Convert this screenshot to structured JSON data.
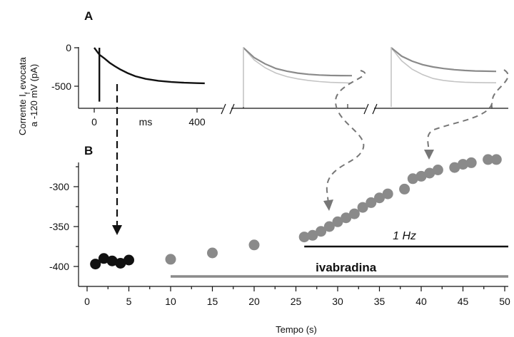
{
  "colors": {
    "black": "#111111",
    "gray": "#8a8a8a",
    "light_gray": "#c4c4c4"
  },
  "chart_data": [
    {
      "panel": "A",
      "type": "line",
      "ylabel_line1": "Corrente I",
      "ylabel_sub": "f",
      "ylabel_line1_end": " evocata",
      "ylabel_line2": "a -120 mV (pA)",
      "xlabel": "ms",
      "x_ticks": [
        "0",
        "400"
      ],
      "y_ticks": [
        "0",
        "-500"
      ],
      "ylim": [
        -720,
        60
      ],
      "xlim": [
        -20,
        450
      ],
      "series": [
        {
          "color": "#111111",
          "x": [
            0,
            20,
            40,
            60,
            80,
            100,
            130,
            160,
            200,
            250,
            300,
            350,
            400,
            430
          ],
          "y": [
            0,
            -90,
            -140,
            -195,
            -240,
            -280,
            -330,
            -370,
            -405,
            -430,
            -445,
            -455,
            -460,
            -462
          ]
        }
      ],
      "insets": [
        {
          "traces": [
            {
              "color": "#c4c4c4",
              "y": [
                0,
                -160,
                -260,
                -330,
                -375,
                -405,
                -425,
                -440,
                -450,
                -455,
                -458
              ]
            },
            {
              "color": "#8a8a8a",
              "y": [
                0,
                -130,
                -210,
                -270,
                -305,
                -330,
                -345,
                -355,
                -360,
                -362,
                -363
              ]
            }
          ]
        },
        {
          "traces": [
            {
              "color": "#c4c4c4",
              "y": [
                0,
                -170,
                -280,
                -350,
                -400,
                -425,
                -440,
                -448,
                -452,
                -455,
                -456
              ]
            },
            {
              "color": "#8a8a8a",
              "y": [
                0,
                -110,
                -175,
                -220,
                -250,
                -270,
                -285,
                -295,
                -302,
                -305,
                -307
              ]
            }
          ]
        }
      ]
    },
    {
      "panel": "B",
      "type": "scatter",
      "xlabel": "Tempo (s)",
      "ylim": [
        -420,
        -250
      ],
      "xlim": [
        -0.5,
        51
      ],
      "x_ticks": [
        "0",
        "5",
        "10",
        "15",
        "20",
        "25",
        "30",
        "35",
        "40",
        "45",
        "50"
      ],
      "y_ticks": [
        "-300",
        "-350",
        "-400"
      ],
      "series": [
        {
          "color": "#111111",
          "x": [
            1,
            2,
            3,
            4,
            5
          ],
          "y": [
            -397,
            -390,
            -393,
            -396,
            -392
          ]
        },
        {
          "color": "#8a8a8a",
          "x": [
            10,
            15,
            20
          ],
          "y": [
            -391,
            -383,
            -373
          ]
        },
        {
          "color": "#8a8a8a",
          "x": [
            26,
            27,
            28,
            29,
            30,
            31,
            32,
            33,
            34,
            35,
            36,
            38,
            39,
            40,
            41,
            42,
            44,
            45,
            46,
            48,
            49
          ],
          "y": [
            -363,
            -361,
            -356,
            -350,
            -344,
            -339,
            -334,
            -326,
            -320,
            -314,
            -309,
            -303,
            -290,
            -287,
            -283,
            -279,
            -276,
            -272,
            -270,
            -266,
            -266
          ]
        }
      ],
      "annotations": {
        "freq": "1 Hz",
        "drug": "ivabradina"
      },
      "bars": {
        "freq": {
          "start": 26,
          "end": 51,
          "color": "#111111"
        },
        "drug": {
          "start": 10,
          "end": 51,
          "color": "#8a8a8a"
        }
      }
    }
  ]
}
